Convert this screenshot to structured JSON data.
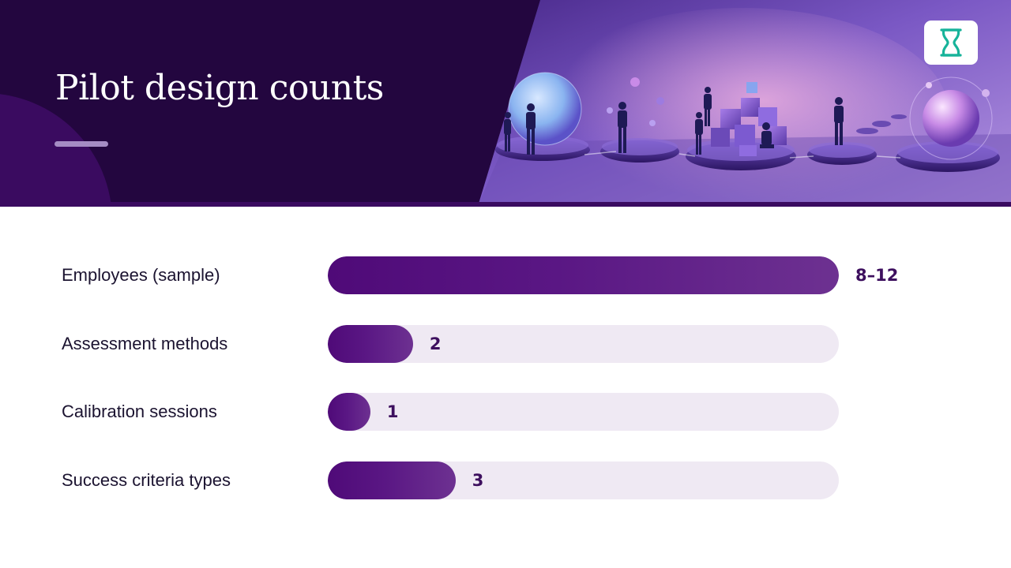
{
  "title": "Pilot design counts",
  "colors": {
    "header_dark": "#23063f",
    "bar_fill": "#5a1784",
    "bar_track": "#efe9f3",
    "value_text": "#3d0f5e",
    "logo_accent": "#17b39a"
  },
  "icons": {
    "logo": "hourglass-logo-icon",
    "hero": "isometric-people-platforms-illustration"
  },
  "chart_data": {
    "type": "bar",
    "orientation": "horizontal",
    "categories": [
      "Employees (sample)",
      "Assessment methods",
      "Calibration sessions",
      "Success criteria types"
    ],
    "values": [
      12,
      2,
      1,
      3
    ],
    "value_labels": [
      "8–12",
      "2",
      "1",
      "3"
    ],
    "xlim": [
      0,
      12
    ],
    "grid": false,
    "axes_visible": false
  }
}
